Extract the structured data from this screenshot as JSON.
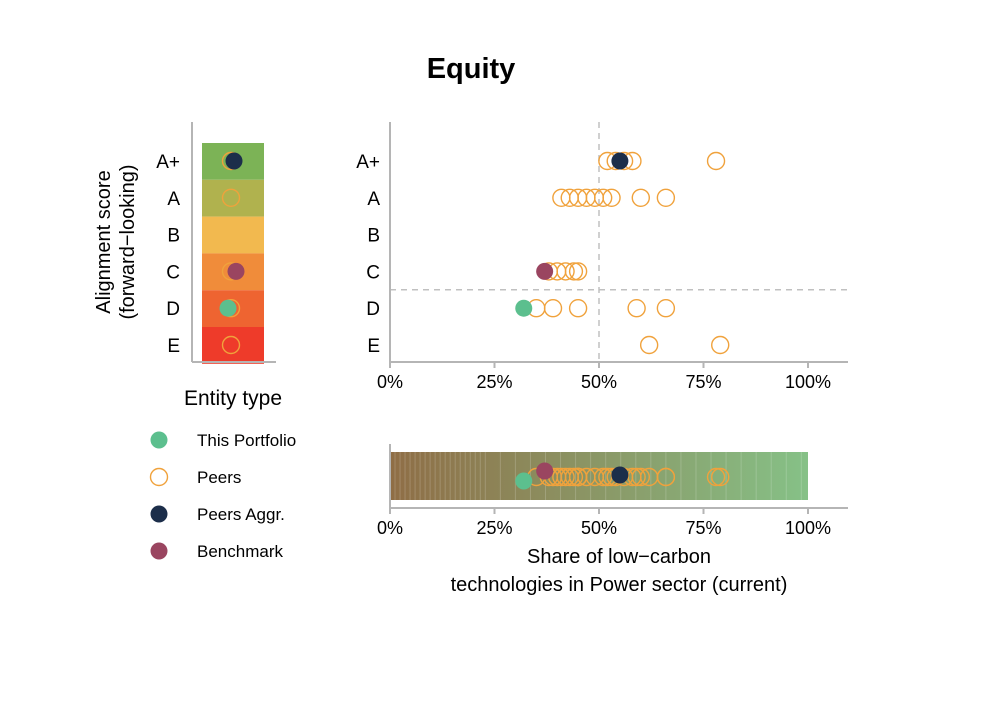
{
  "title": "Equity",
  "colors": {
    "this_portfolio": "#5cbf8e",
    "peers": "#f0a23c",
    "peers_aggr": "#1c2e4a",
    "benchmark": "#9a4560",
    "score_bands": [
      "#7cb356",
      "#b0b24e",
      "#f2b94f",
      "#f08c3a",
      "#ee6431",
      "#ee3b2a"
    ],
    "gradient_start": "#8f6e46",
    "gradient_end": "#86c187"
  },
  "legend": {
    "title": "Entity type",
    "items": [
      {
        "label": "This Portfolio",
        "style": "filled",
        "color": "#5cbf8e"
      },
      {
        "label": "Peers",
        "style": "hollow",
        "color": "#f0a23c"
      },
      {
        "label": "Peers Aggr.",
        "style": "filled",
        "color": "#1c2e4a"
      },
      {
        "label": "Benchmark",
        "style": "filled",
        "color": "#9a4560"
      }
    ]
  },
  "chart_data": {
    "type": "scatter",
    "title": "Equity",
    "ylabel": "Alignment score\n(forward−looking)",
    "xlabel": "Share of low−carbon\ntechnologies in Power sector (current)",
    "categories": [
      "A+",
      "A",
      "B",
      "C",
      "D",
      "E"
    ],
    "x_ticks": [
      "0%",
      "25%",
      "50%",
      "75%",
      "100%"
    ],
    "xlim": [
      0,
      1.1
    ],
    "reference_lines": {
      "vertical_x": 0.5,
      "horizontal_between": [
        "C",
        "D"
      ]
    },
    "series": [
      {
        "name": "This Portfolio",
        "points": [
          {
            "score": "D",
            "x": 0.32
          }
        ]
      },
      {
        "name": "Peers",
        "points": [
          {
            "score": "A+",
            "x": 0.52
          },
          {
            "score": "A+",
            "x": 0.54
          },
          {
            "score": "A+",
            "x": 0.56
          },
          {
            "score": "A+",
            "x": 0.58
          },
          {
            "score": "A+",
            "x": 0.78
          },
          {
            "score": "A",
            "x": 0.41
          },
          {
            "score": "A",
            "x": 0.43
          },
          {
            "score": "A",
            "x": 0.45
          },
          {
            "score": "A",
            "x": 0.47
          },
          {
            "score": "A",
            "x": 0.49
          },
          {
            "score": "A",
            "x": 0.51
          },
          {
            "score": "A",
            "x": 0.53
          },
          {
            "score": "A",
            "x": 0.6
          },
          {
            "score": "A",
            "x": 0.66
          },
          {
            "score": "C",
            "x": 0.38
          },
          {
            "score": "C",
            "x": 0.4
          },
          {
            "score": "C",
            "x": 0.42
          },
          {
            "score": "C",
            "x": 0.44
          },
          {
            "score": "C",
            "x": 0.45
          },
          {
            "score": "D",
            "x": 0.35
          },
          {
            "score": "D",
            "x": 0.39
          },
          {
            "score": "D",
            "x": 0.45
          },
          {
            "score": "D",
            "x": 0.59
          },
          {
            "score": "D",
            "x": 0.66
          },
          {
            "score": "E",
            "x": 0.62
          },
          {
            "score": "E",
            "x": 0.79
          }
        ]
      },
      {
        "name": "Peers Aggr.",
        "points": [
          {
            "score": "A+",
            "x": 0.55
          }
        ]
      },
      {
        "name": "Benchmark",
        "points": [
          {
            "score": "C",
            "x": 0.37
          }
        ]
      }
    ]
  }
}
